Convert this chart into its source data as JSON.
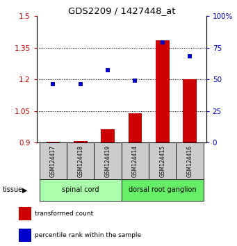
{
  "title": "GDS2209 / 1427448_at",
  "samples": [
    "GSM124417",
    "GSM124418",
    "GSM124419",
    "GSM124414",
    "GSM124415",
    "GSM124416"
  ],
  "bar_values": [
    0.905,
    0.907,
    0.965,
    1.04,
    1.385,
    1.2
  ],
  "scatter_values": [
    46,
    46,
    57,
    49,
    79,
    68
  ],
  "ylim_left": [
    0.9,
    1.5
  ],
  "ylim_right": [
    0,
    100
  ],
  "yticks_left": [
    0.9,
    1.05,
    1.2,
    1.35,
    1.5
  ],
  "yticks_right": [
    0,
    25,
    50,
    75,
    100
  ],
  "bar_color": "#cc0000",
  "scatter_color": "#0000cc",
  "tissue_groups": [
    {
      "label": "spinal cord",
      "start": 0,
      "end": 3,
      "color": "#aaffaa"
    },
    {
      "label": "dorsal root ganglion",
      "start": 3,
      "end": 6,
      "color": "#66ee66"
    }
  ],
  "legend_items": [
    {
      "label": "transformed count",
      "color": "#cc0000"
    },
    {
      "label": "percentile rank within the sample",
      "color": "#0000cc"
    }
  ],
  "tissue_label": "tissue",
  "sample_box_color": "#cccccc",
  "ylabel_left_color": "#cc0000",
  "ylabel_right_color": "#0000cc",
  "bar_width": 0.5
}
